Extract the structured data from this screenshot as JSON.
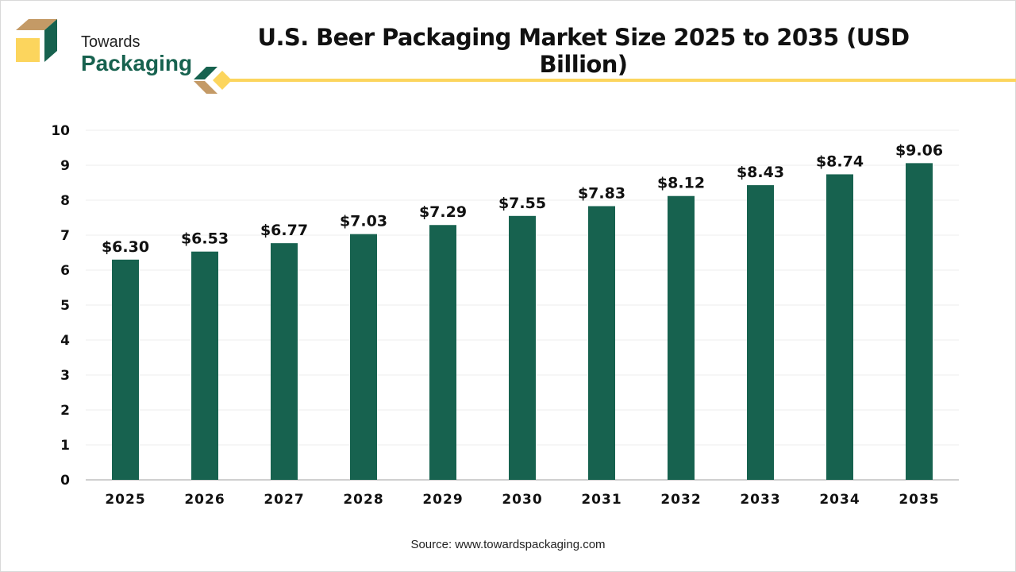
{
  "brand": {
    "line1": "Towards",
    "line2": "Packaging",
    "colors": {
      "green": "#17624f",
      "tan": "#c49a66",
      "yellow": "#fcd55d"
    }
  },
  "source": "Source: www.towardspackaging.com",
  "chart_data": {
    "type": "bar",
    "title": "U.S. Beer Packaging Market Size 2025 to 2035 (USD Billion)",
    "categories": [
      "2025",
      "2026",
      "2027",
      "2028",
      "2029",
      "2030",
      "2031",
      "2032",
      "2033",
      "2034",
      "2035"
    ],
    "values": [
      6.3,
      6.53,
      6.77,
      7.03,
      7.29,
      7.55,
      7.83,
      8.12,
      8.43,
      8.74,
      9.06
    ],
    "data_labels": [
      "$6.30",
      "$6.53",
      "$6.77",
      "$7.03",
      "$7.29",
      "$7.55",
      "$7.83",
      "$8.12",
      "$8.43",
      "$8.74",
      "$9.06"
    ],
    "xlabel": "",
    "ylabel": "",
    "ylim": [
      0,
      10
    ],
    "yticks": [
      "0",
      "1",
      "2",
      "3",
      "4",
      "5",
      "6",
      "7",
      "8",
      "9",
      "10"
    ],
    "grid": true,
    "bar_color": "#17624f"
  }
}
